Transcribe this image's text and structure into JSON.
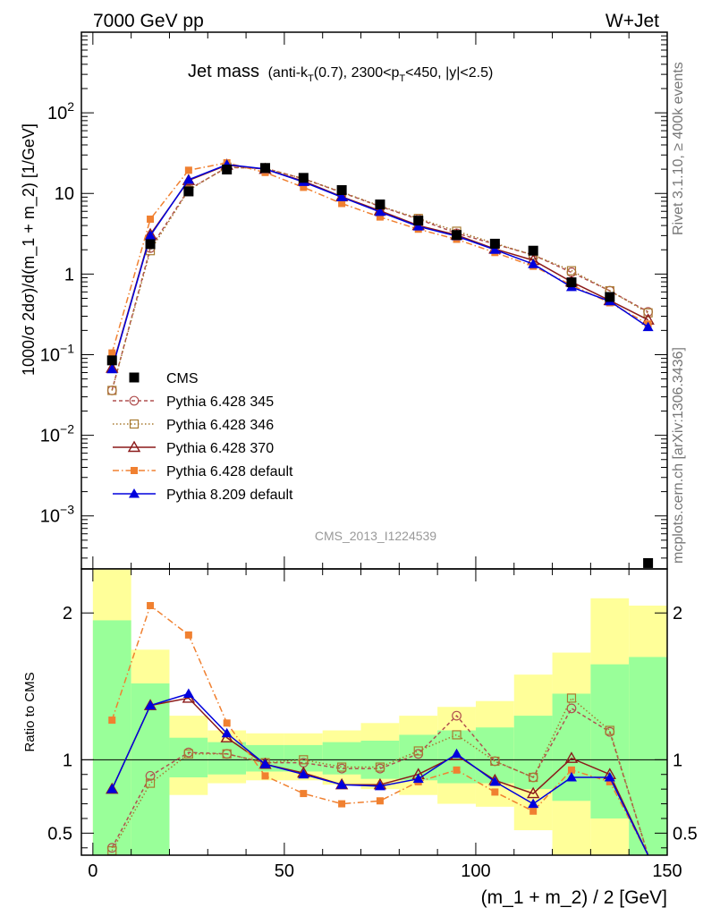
{
  "header": {
    "left": "7000 GeV pp",
    "right": "W+Jet"
  },
  "side_labels": {
    "rivet": "Rivet 3.1.10, ≥ 400k events",
    "mcplots": "mcplots.cern.ch [arXiv:1306.3436]"
  },
  "chart_data": [
    {
      "type": "scatter",
      "title_main": "Jet mass",
      "title_sub": "(anti-k",
      "title_sub_T1": "T",
      "title_sub_mid": "(0.7), 2300<p",
      "title_sub_T2": "T",
      "title_sub_end": "<450, |y|<2.5)",
      "ylabel": "1000/σ 2dσ)/d(m_1 + m_2) [1/GeV]",
      "watermark": "CMS_2013_I1224539",
      "yscale": "log",
      "xlim": [
        -3,
        150
      ],
      "ylim": [
        0.00022,
        1000
      ],
      "y_ticks": [
        {
          "value": 0.001,
          "base": "10",
          "exp": "−3"
        },
        {
          "value": 0.01,
          "base": "10",
          "exp": "−2"
        },
        {
          "value": 0.1,
          "base": "10",
          "exp": "−1"
        },
        {
          "value": 1,
          "label": "1"
        },
        {
          "value": 10,
          "label": "10"
        },
        {
          "value": 100,
          "base": "10",
          "exp": "2"
        }
      ],
      "x": [
        5,
        15,
        25,
        35,
        45,
        55,
        65,
        75,
        85,
        95,
        105,
        115,
        125,
        135,
        145
      ],
      "series": [
        {
          "name": "CMS",
          "color": "#000000",
          "marker": "square-filled",
          "dash": "none",
          "values": [
            0.085,
            2.35,
            10.6,
            19.8,
            20.7,
            15.6,
            11.0,
            7.3,
            4.6,
            3.05,
            2.38,
            1.95,
            0.79,
            0.52,
            0.00026
          ]
        },
        {
          "name": "Pythia 6.428 345",
          "color": "#b05050",
          "marker": "circle-open",
          "dash": "4,3",
          "values": [
            0.036,
            2.1,
            11.2,
            21.0,
            20.5,
            15.2,
            10.3,
            6.9,
            4.8,
            3.2,
            2.35,
            1.72,
            1.05,
            0.62,
            0.34
          ]
        },
        {
          "name": "Pythia 6.428 346",
          "color": "#a87a30",
          "marker": "square-open",
          "dash": "1.5,2.5",
          "values": [
            0.036,
            1.95,
            11.0,
            21.2,
            20.3,
            15.3,
            10.4,
            7.0,
            4.9,
            3.4,
            2.4,
            1.72,
            1.1,
            0.62,
            0.33
          ]
        },
        {
          "name": "Pythia 6.428 370",
          "color": "#8b1a1a",
          "marker": "triangle-open",
          "dash": "none",
          "values": [
            0.068,
            3.1,
            14.5,
            22.5,
            20.0,
            14.2,
            9.1,
            6.1,
            4.0,
            3.05,
            2.05,
            1.48,
            0.8,
            0.47,
            0.27
          ]
        },
        {
          "name": "Pythia 6.428 default",
          "color": "#f08030",
          "marker": "square-filled-small",
          "dash": "7,3,1.5,3",
          "values": [
            0.105,
            4.8,
            19.4,
            24.0,
            18.2,
            11.9,
            7.5,
            5.1,
            3.6,
            2.7,
            1.85,
            1.25,
            0.73,
            0.44,
            0.24
          ]
        },
        {
          "name": "Pythia 8.209 default",
          "color": "#0000dd",
          "marker": "triangle-filled",
          "dash": "none",
          "values": [
            0.066,
            3.0,
            14.8,
            22.8,
            20.1,
            13.9,
            9.0,
            5.9,
            3.9,
            2.95,
            2.0,
            1.33,
            0.69,
            0.46,
            0.22
          ]
        }
      ],
      "legend_position": "center-left"
    },
    {
      "type": "scatter",
      "ylabel": "Ratio to CMS",
      "xlabel": "(m_1 + m_2) / 2 [GeV]",
      "xlim": [
        -3,
        150
      ],
      "ylim": [
        0.35,
        2.3
      ],
      "x_ticks": [
        0,
        50,
        100,
        150
      ],
      "y_ticks": [
        {
          "value": 0.5,
          "label": "0.5"
        },
        {
          "value": 1,
          "label": "1"
        },
        {
          "value": 2,
          "label": "2"
        }
      ],
      "bins": [
        [
          0,
          10
        ],
        [
          10,
          20
        ],
        [
          20,
          30
        ],
        [
          30,
          40
        ],
        [
          40,
          50
        ],
        [
          50,
          60
        ],
        [
          60,
          70
        ],
        [
          70,
          80
        ],
        [
          80,
          90
        ],
        [
          90,
          100
        ],
        [
          100,
          110
        ],
        [
          110,
          120
        ],
        [
          120,
          130
        ],
        [
          130,
          140
        ],
        [
          140,
          150
        ]
      ],
      "band_green": [
        [
          0.35,
          1.95
        ],
        [
          0.35,
          1.52
        ],
        [
          0.88,
          1.15
        ],
        [
          0.9,
          1.12
        ],
        [
          0.92,
          1.1
        ],
        [
          0.92,
          1.1
        ],
        [
          0.9,
          1.12
        ],
        [
          0.87,
          1.13
        ],
        [
          0.86,
          1.17
        ],
        [
          0.84,
          1.2
        ],
        [
          0.84,
          1.22
        ],
        [
          0.8,
          1.3
        ],
        [
          0.72,
          1.45
        ],
        [
          0.6,
          1.65
        ],
        [
          0.35,
          1.7
        ]
      ],
      "band_yellow": [
        [
          0.35,
          2.3
        ],
        [
          0.35,
          1.75
        ],
        [
          0.76,
          1.3
        ],
        [
          0.84,
          1.2
        ],
        [
          0.86,
          1.18
        ],
        [
          0.86,
          1.18
        ],
        [
          0.83,
          1.2
        ],
        [
          0.8,
          1.25
        ],
        [
          0.76,
          1.3
        ],
        [
          0.7,
          1.36
        ],
        [
          0.68,
          1.4
        ],
        [
          0.52,
          1.58
        ],
        [
          0.35,
          1.73
        ],
        [
          0.35,
          2.1
        ],
        [
          0.35,
          2.05
        ]
      ],
      "ratio_series": [
        {
          "name": "Pythia 6.428 345",
          "values": [
            0.4,
            0.89,
            1.05,
            1.04,
            0.98,
            0.98,
            0.94,
            0.94,
            1.04,
            1.3,
            0.99,
            0.88,
            1.35,
            1.19,
            0.0
          ]
        },
        {
          "name": "Pythia 6.428 346",
          "values": [
            0.38,
            0.84,
            1.04,
            1.04,
            0.98,
            1.0,
            0.95,
            0.95,
            1.06,
            1.17,
            0.99,
            0.88,
            1.42,
            1.2,
            0.0
          ]
        },
        {
          "name": "Pythia 6.428 370",
          "values": [
            0.8,
            1.37,
            1.42,
            1.15,
            0.97,
            0.91,
            0.83,
            0.83,
            0.9,
            1.03,
            0.86,
            0.77,
            1.01,
            0.9,
            0.0
          ]
        },
        {
          "name": "Pythia 6.428 default",
          "values": [
            1.27,
            2.05,
            1.85,
            1.25,
            0.89,
            0.77,
            0.7,
            0.72,
            0.85,
            0.93,
            0.78,
            0.65,
            0.93,
            0.85,
            0.0
          ]
        },
        {
          "name": "Pythia 8.209 default",
          "values": [
            0.8,
            1.37,
            1.45,
            1.18,
            0.97,
            0.9,
            0.83,
            0.82,
            0.87,
            1.04,
            0.85,
            0.7,
            0.88,
            0.88,
            0.0
          ]
        }
      ]
    }
  ]
}
